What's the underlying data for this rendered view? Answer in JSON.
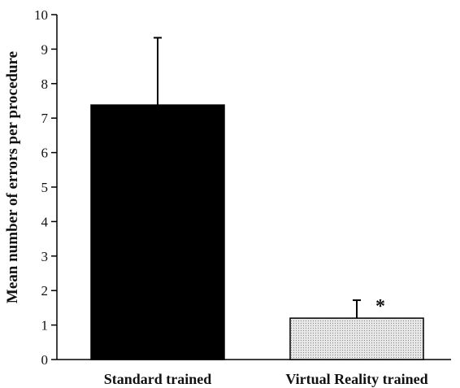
{
  "chart_data": {
    "type": "bar",
    "categories": [
      "Standard trained",
      "Virtual Reality trained"
    ],
    "values": [
      7.38,
      1.2
    ],
    "error_upper": [
      9.33,
      1.72
    ],
    "ylabel": "Mean number of errors per procedure",
    "xlabel": "",
    "ylim": [
      0,
      10
    ],
    "yticks": [
      "0",
      "1",
      "2",
      "3",
      "4",
      "5",
      "6",
      "7",
      "8",
      "9",
      "10"
    ],
    "annotations": [
      {
        "category": "Virtual Reality trained",
        "text": "*"
      }
    ],
    "bar_fills": [
      "#000000",
      "dotted light gray"
    ],
    "grid": false,
    "legend": "none"
  }
}
